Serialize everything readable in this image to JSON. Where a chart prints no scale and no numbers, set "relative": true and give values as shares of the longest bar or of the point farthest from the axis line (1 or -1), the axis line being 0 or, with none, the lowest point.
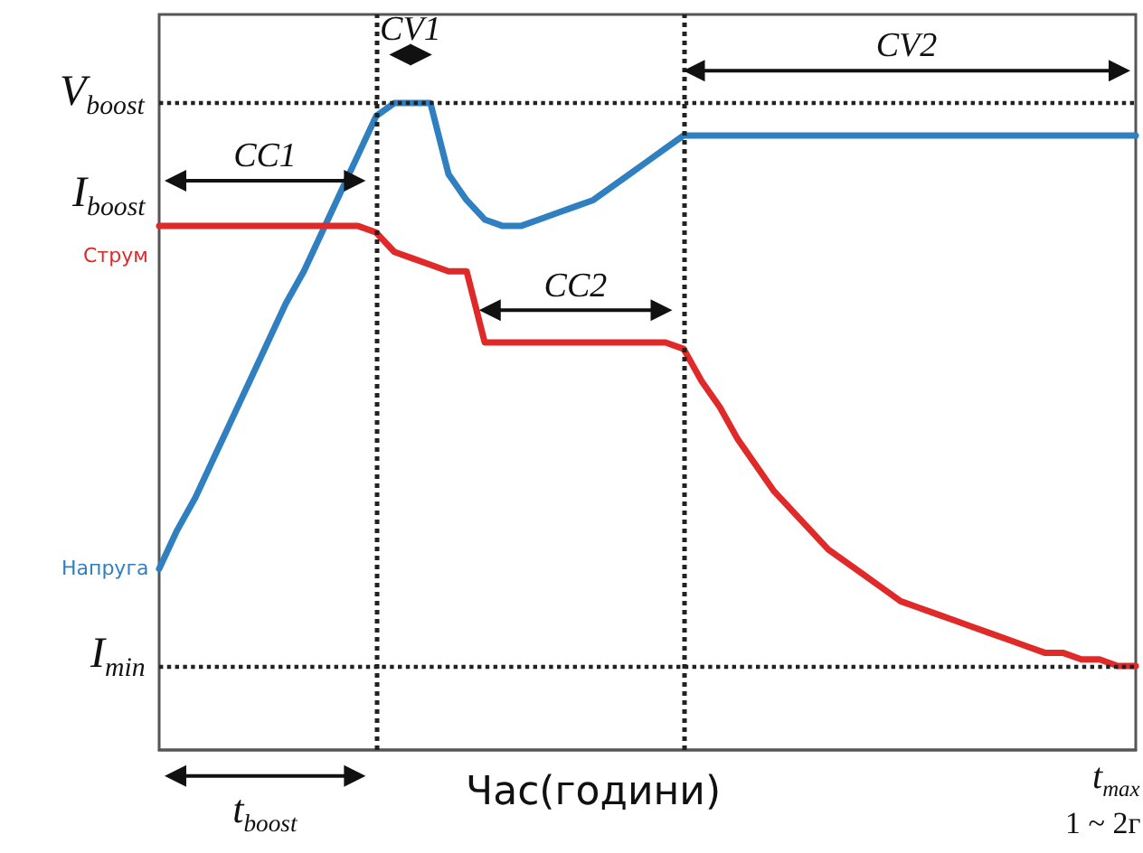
{
  "chart_data": {
    "type": "line",
    "relative": true,
    "xlabel": "Час(години)",
    "marker": "none",
    "categories": [
      null,
      null,
      null,
      null,
      null,
      null,
      null,
      null,
      null,
      null,
      null,
      null,
      null,
      null,
      null,
      null,
      null,
      null,
      null,
      null,
      null,
      null,
      null,
      null,
      null,
      null,
      null,
      null,
      null,
      null,
      null,
      null,
      null,
      null,
      null,
      null,
      null,
      null,
      null,
      null,
      null,
      null,
      null,
      null,
      null,
      null,
      null,
      null,
      null,
      null,
      null,
      null,
      null,
      null,
      null
    ],
    "series": [
      {
        "name": "Напруга",
        "color": "#2f7fc1",
        "values": [
          0.28,
          0.34,
          0.39,
          0.45,
          0.51,
          0.57,
          0.63,
          0.69,
          0.74,
          0.8,
          0.86,
          0.92,
          0.98,
          1,
          1,
          1,
          0.89,
          0.85,
          0.82,
          0.81,
          0.81,
          0.82,
          0.83,
          0.84,
          0.85,
          0.87,
          0.89,
          0.91,
          0.93,
          0.95,
          0.95,
          0.95,
          0.95,
          0.95,
          0.95,
          0.95,
          0.95,
          0.95,
          0.95,
          0.95,
          0.95,
          0.95,
          0.95,
          0.95,
          0.95,
          0.95,
          0.95,
          0.95,
          0.95,
          0.95,
          0.95,
          0.95,
          0.95,
          0.95,
          0.95
        ]
      },
      {
        "name": "Струм",
        "color": "#e02a2a",
        "values": [
          0.81,
          0.81,
          0.81,
          0.81,
          0.81,
          0.81,
          0.81,
          0.81,
          0.81,
          0.81,
          0.81,
          0.81,
          0.8,
          0.77,
          0.76,
          0.75,
          0.74,
          0.74,
          0.63,
          0.63,
          0.63,
          0.63,
          0.63,
          0.63,
          0.63,
          0.63,
          0.63,
          0.63,
          0.63,
          0.62,
          0.57,
          0.53,
          0.48,
          0.44,
          0.4,
          0.37,
          0.34,
          0.31,
          0.29,
          0.27,
          0.25,
          0.23,
          0.22,
          0.21,
          0.2,
          0.19,
          0.18,
          0.17,
          0.16,
          0.15,
          0.15,
          0.14,
          0.14,
          0.13,
          0.13
        ]
      }
    ],
    "ref_lines": [
      {
        "axis": "y",
        "value": 1,
        "label": "V$_{boost}$",
        "line_style": "dotted"
      },
      {
        "axis": "y",
        "value": 0.13,
        "label": "I$_{min}$",
        "line_style": "dotted"
      }
    ],
    "annotations": [
      "CC1",
      "CV1",
      "CC2",
      "CV2",
      "t$_{boost}$",
      "I$_{boost}$",
      "t$_{max}$",
      "1 ~ 2г"
    ]
  }
}
